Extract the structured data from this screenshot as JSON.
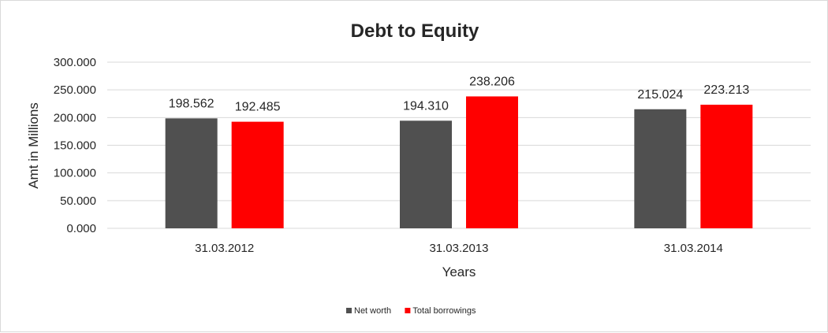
{
  "chart_data": {
    "type": "bar",
    "title": "Debt to Equity",
    "xlabel": "Years",
    "ylabel": "Amt in Millions",
    "categories": [
      "31.03.2012",
      "31.03.2013",
      "31.03.2014"
    ],
    "series": [
      {
        "name": "Net worth",
        "values": [
          198.562,
          194.31,
          215.024
        ],
        "labels": [
          "198.562",
          "194.310",
          "215.024"
        ],
        "color": "#505050"
      },
      {
        "name": "Total borrowings",
        "values": [
          192.485,
          238.206,
          223.213
        ],
        "labels": [
          "192.485",
          "238.206",
          "223.213"
        ],
        "color": "#ff0000"
      }
    ],
    "ylim": [
      0,
      300
    ],
    "yticks": [
      "0.000",
      "50.000",
      "100.000",
      "150.000",
      "200.000",
      "250.000",
      "300.000"
    ],
    "grid": true,
    "legend_position": "bottom"
  }
}
